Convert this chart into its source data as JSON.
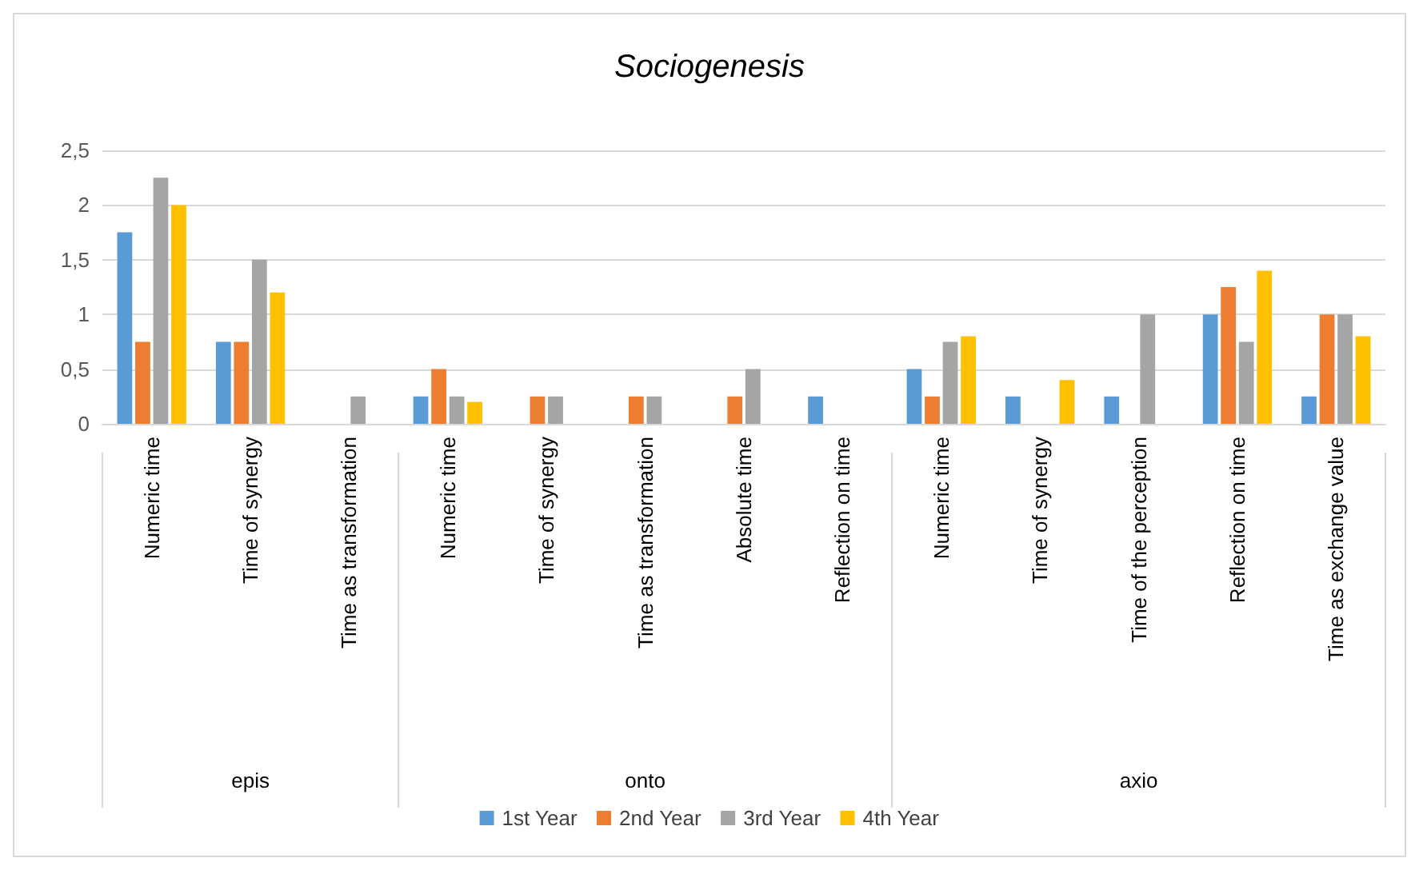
{
  "chart_data": {
    "type": "bar",
    "title": "Sociogenesis",
    "categories": [
      "Numeric time",
      "Time of synergy",
      "Time as transformation",
      "Numeric time",
      "Time of synergy",
      "Time as transformation",
      "Absolute time",
      "Reflection on time",
      "Numeric time",
      "Time of synergy",
      "Time of the perception",
      "Reflection on time",
      "Time as exchange value"
    ],
    "series": [
      {
        "name": "1st Year",
        "color": "#5b9bd5",
        "values": [
          1.75,
          0.75,
          0,
          0.25,
          0,
          0,
          0,
          0.25,
          0.5,
          0.25,
          0.25,
          1,
          0.25
        ]
      },
      {
        "name": "2nd Year",
        "color": "#ed7d31",
        "values": [
          0.75,
          0.75,
          0,
          0.5,
          0.25,
          0.25,
          0.25,
          0,
          0.25,
          0,
          0,
          1.25,
          1
        ]
      },
      {
        "name": "3rd Year",
        "color": "#a5a5a5",
        "values": [
          2.25,
          1.5,
          0.25,
          0.25,
          0.25,
          0.25,
          0.5,
          0,
          0.75,
          0,
          1,
          0.75,
          1
        ]
      },
      {
        "name": "4th Year",
        "color": "#ffc000",
        "values": [
          2,
          1.2,
          0,
          0.2,
          0,
          0,
          0,
          0,
          0.8,
          0.4,
          0,
          1.4,
          0.8
        ]
      }
    ],
    "annotations": [
      "epis",
      "onto",
      "axio"
    ],
    "ylim": [
      0,
      2.5
    ],
    "yticks": [
      0,
      {
        "value": 0.5,
        "label": "0,5"
      },
      1,
      {
        "value": 1.5,
        "label": "1,5"
      },
      2,
      {
        "value": 2.5,
        "label": "2,5"
      }
    ],
    "grid": "y",
    "legend": "bottom"
  }
}
